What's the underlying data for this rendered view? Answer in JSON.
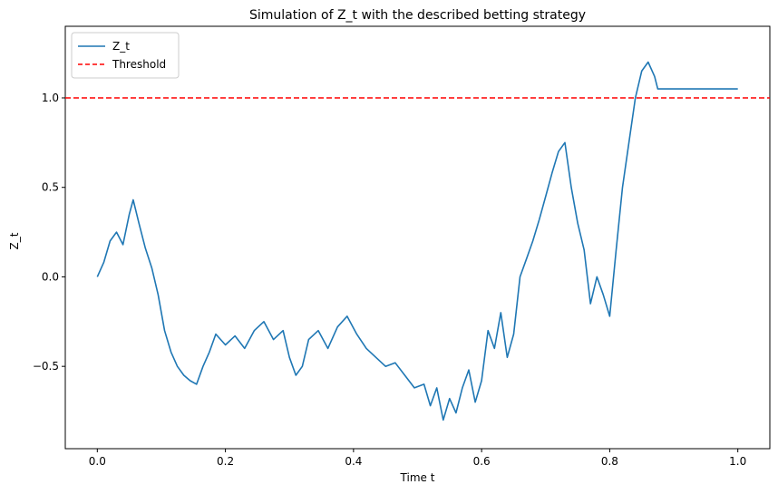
{
  "chart_data": {
    "type": "line",
    "title": "Simulation of Z_t with the described betting strategy",
    "xlabel": "Time t",
    "ylabel": "Z_t",
    "xlim": [
      -0.05,
      1.05
    ],
    "ylim": [
      -0.96,
      1.4
    ],
    "xticks": [
      0.0,
      0.2,
      0.4,
      0.6,
      0.8,
      1.0
    ],
    "xtick_labels": [
      "0.0",
      "0.2",
      "0.4",
      "0.6",
      "0.8",
      "1.0"
    ],
    "yticks": [
      -0.5,
      0.0,
      0.5,
      1.0
    ],
    "ytick_labels": [
      "−0.5",
      "0.0",
      "0.5",
      "1.0"
    ],
    "grid": false,
    "legend_position": "top-left",
    "series": [
      {
        "name": "Z_t",
        "color": "#1f77b4",
        "style": "solid",
        "x": [
          0.0,
          0.01,
          0.02,
          0.03,
          0.04,
          0.05,
          0.056,
          0.065,
          0.075,
          0.085,
          0.095,
          0.105,
          0.115,
          0.125,
          0.135,
          0.145,
          0.155,
          0.165,
          0.175,
          0.185,
          0.2,
          0.215,
          0.23,
          0.245,
          0.26,
          0.275,
          0.29,
          0.3,
          0.31,
          0.32,
          0.33,
          0.345,
          0.36,
          0.375,
          0.39,
          0.405,
          0.42,
          0.435,
          0.45,
          0.465,
          0.48,
          0.495,
          0.51,
          0.52,
          0.53,
          0.54,
          0.55,
          0.56,
          0.57,
          0.58,
          0.59,
          0.6,
          0.61,
          0.62,
          0.63,
          0.64,
          0.65,
          0.66,
          0.67,
          0.68,
          0.69,
          0.7,
          0.71,
          0.72,
          0.73,
          0.74,
          0.75,
          0.76,
          0.77,
          0.78,
          0.79,
          0.8,
          0.81,
          0.82,
          0.83,
          0.84,
          0.85,
          0.86,
          0.87,
          0.875,
          0.88,
          0.9,
          0.95,
          1.0
        ],
        "y": [
          0.0,
          0.08,
          0.2,
          0.25,
          0.18,
          0.35,
          0.43,
          0.3,
          0.16,
          0.05,
          -0.1,
          -0.3,
          -0.42,
          -0.5,
          -0.55,
          -0.58,
          -0.6,
          -0.5,
          -0.42,
          -0.32,
          -0.38,
          -0.33,
          -0.4,
          -0.3,
          -0.25,
          -0.35,
          -0.3,
          -0.45,
          -0.55,
          -0.5,
          -0.35,
          -0.3,
          -0.4,
          -0.28,
          -0.22,
          -0.32,
          -0.4,
          -0.45,
          -0.5,
          -0.48,
          -0.55,
          -0.62,
          -0.6,
          -0.72,
          -0.62,
          -0.8,
          -0.68,
          -0.76,
          -0.62,
          -0.52,
          -0.7,
          -0.58,
          -0.3,
          -0.4,
          -0.2,
          -0.45,
          -0.32,
          0.0,
          0.1,
          0.2,
          0.32,
          0.45,
          0.58,
          0.7,
          0.75,
          0.5,
          0.3,
          0.15,
          -0.15,
          0.0,
          -0.1,
          -0.22,
          0.15,
          0.5,
          0.75,
          1.0,
          1.15,
          1.2,
          1.12,
          1.05,
          1.05,
          1.05,
          1.05,
          1.05
        ]
      },
      {
        "name": "Threshold",
        "color": "#ff0000",
        "style": "dashed",
        "x": [
          -0.05,
          1.05
        ],
        "y": [
          1.0,
          1.0
        ]
      }
    ]
  }
}
